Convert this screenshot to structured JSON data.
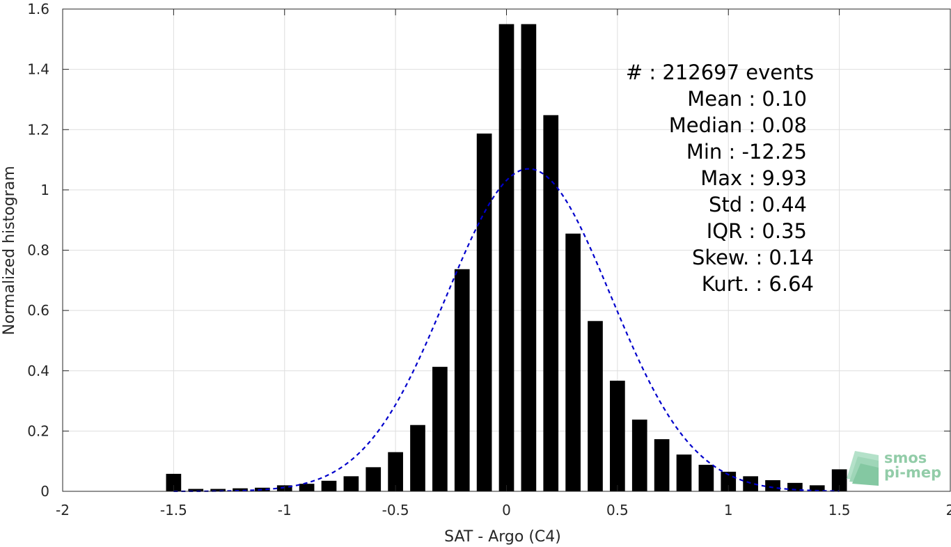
{
  "chart_data": {
    "type": "bar",
    "xlabel": "SAT - Argo (C4)",
    "ylabel": "Normalized histogram",
    "xlim": [
      -2,
      2
    ],
    "ylim": [
      0,
      1.6
    ],
    "xticks": [
      -2,
      -1.5,
      -1,
      -0.5,
      0,
      0.5,
      1,
      1.5,
      2
    ],
    "xtick_labels": [
      "-2",
      "-1.5",
      "-1",
      "-0.5",
      "0",
      "0.5",
      "1",
      "1.5",
      "2"
    ],
    "yticks": [
      0,
      0.2,
      0.4,
      0.6,
      0.8,
      1,
      1.2,
      1.4,
      1.6
    ],
    "ytick_labels": [
      "0",
      "0.2",
      "0.4",
      "0.6",
      "0.8",
      "1",
      "1.2",
      "1.4",
      "1.6"
    ],
    "grid": true,
    "bar_color": "#000000",
    "bin_width": 0.1,
    "bin_centers": [
      -1.5,
      -1.4,
      -1.3,
      -1.2,
      -1.1,
      -1.0,
      -0.9,
      -0.8,
      -0.7,
      -0.6,
      -0.5,
      -0.4,
      -0.3,
      -0.2,
      -0.1,
      0.0,
      0.1,
      0.2,
      0.3,
      0.4,
      0.5,
      0.6,
      0.7,
      0.8,
      0.9,
      1.0,
      1.1,
      1.2,
      1.3,
      1.4,
      1.5
    ],
    "values": [
      0.058,
      0.008,
      0.008,
      0.01,
      0.012,
      0.02,
      0.025,
      0.035,
      0.05,
      0.08,
      0.13,
      0.22,
      0.413,
      0.737,
      1.187,
      1.55,
      1.55,
      1.248,
      0.855,
      0.565,
      0.367,
      0.238,
      0.173,
      0.122,
      0.088,
      0.065,
      0.05,
      0.037,
      0.028,
      0.02,
      0.073
    ],
    "fit_curve": {
      "type": "gaussian",
      "mean": 0.1,
      "std": 0.37,
      "peak": 1.07,
      "x_range": [
        -1.5,
        1.5
      ],
      "color": "#0000cc",
      "style": "dashed"
    },
    "stats": [
      "#  : 212697 events",
      "Mean : 0.10",
      "Median : 0.08",
      "Min : -12.25",
      "Max : 9.93",
      "Std : 0.44",
      "IQR : 0.35",
      "Skew. : 0.14",
      "Kurt. : 6.64"
    ]
  },
  "logo": {
    "line1": "smos",
    "line2": "pi-mep",
    "color": "#7fc49a"
  }
}
